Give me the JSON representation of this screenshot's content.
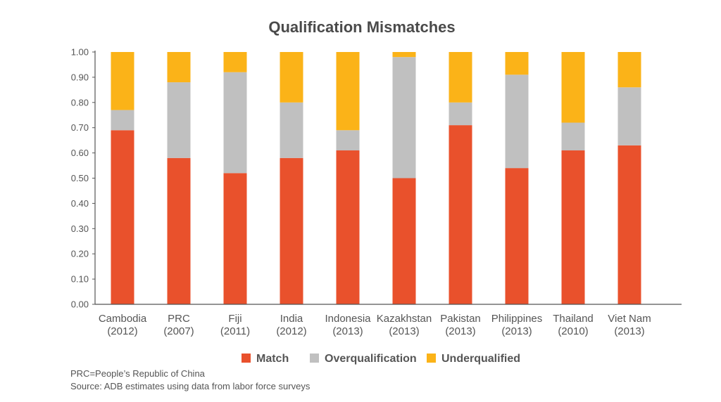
{
  "chart_data": {
    "type": "bar",
    "stacked": true,
    "title": "Qualification Mismatches",
    "categories": [
      [
        "Cambodia",
        "(2012)"
      ],
      [
        "PRC",
        "(2007)"
      ],
      [
        "Fiji",
        "(2011)"
      ],
      [
        "India",
        "(2012)"
      ],
      [
        "Indonesia",
        "(2013)"
      ],
      [
        "Kazakhstan",
        "(2013)"
      ],
      [
        "Pakistan",
        "(2013)"
      ],
      [
        "Philippines",
        "(2013)"
      ],
      [
        "Thailand",
        "(2010)"
      ],
      [
        "Viet Nam",
        "(2013)"
      ]
    ],
    "series": [
      {
        "name": "Match",
        "color": "#e9512c",
        "values": [
          0.69,
          0.58,
          0.52,
          0.58,
          0.61,
          0.5,
          0.71,
          0.54,
          0.61,
          0.63
        ]
      },
      {
        "name": "Overqualification",
        "color": "#c0c0c0",
        "values": [
          0.08,
          0.3,
          0.4,
          0.22,
          0.08,
          0.48,
          0.09,
          0.37,
          0.11,
          0.23
        ]
      },
      {
        "name": "Underqualified",
        "color": "#fbb318",
        "values": [
          0.23,
          0.12,
          0.08,
          0.2,
          0.31,
          0.02,
          0.2,
          0.09,
          0.28,
          0.14
        ]
      }
    ],
    "ylim": [
      0,
      1
    ],
    "yticks": [
      "0.00",
      "0.10",
      "0.20",
      "0.30",
      "0.40",
      "0.50",
      "0.60",
      "0.70",
      "0.80",
      "0.90",
      "1.00"
    ],
    "legend_position": "bottom"
  },
  "notes": [
    "PRC=People’s Republic of China",
    "Source: ADB estimates using data from labor force surveys"
  ]
}
